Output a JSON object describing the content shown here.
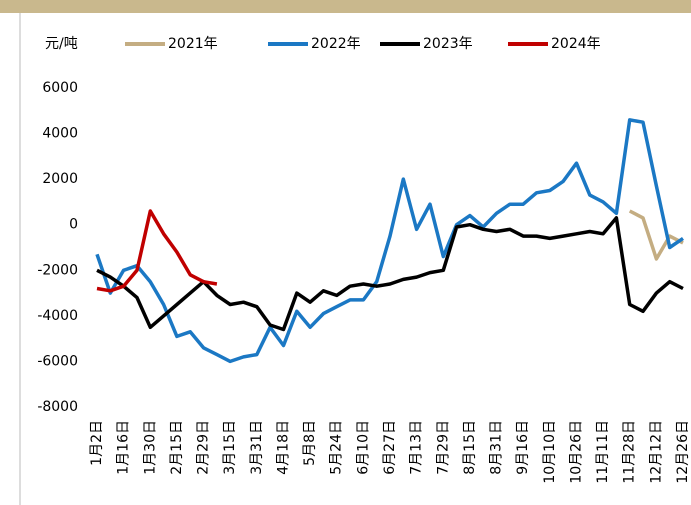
{
  "chart_data": {
    "type": "line",
    "y_unit": "元/吨",
    "categories": [
      "1月2日",
      null,
      "1月16日",
      null,
      "1月30日",
      null,
      "2月15日",
      null,
      "2月29日",
      null,
      "3月15日",
      null,
      "3月31日",
      null,
      "4月18日",
      null,
      "5月8日",
      null,
      "5月24日",
      null,
      "6月10日",
      null,
      "6月27日",
      null,
      "7月13日",
      null,
      "7月29日",
      null,
      "8月15日",
      null,
      "8月31日",
      null,
      "9月16日",
      null,
      "10月10日",
      null,
      "10月26日",
      null,
      "11月11日",
      null,
      "11月28日",
      null,
      "12月12日",
      null,
      "12月26日"
    ],
    "series": [
      {
        "name": "2021年",
        "color": "#c4ad82",
        "values": [
          null,
          null,
          null,
          null,
          null,
          null,
          null,
          null,
          null,
          null,
          null,
          null,
          null,
          null,
          null,
          null,
          null,
          null,
          null,
          null,
          null,
          null,
          null,
          null,
          null,
          null,
          null,
          null,
          null,
          null,
          null,
          null,
          null,
          null,
          null,
          null,
          null,
          null,
          null,
          null,
          600,
          300,
          -1500,
          -500,
          -800
        ]
      },
      {
        "name": "2022年",
        "color": "#1b78c4",
        "values": [
          -1300,
          -3000,
          -2000,
          -1800,
          -2500,
          -3500,
          -4900,
          -4700,
          -5400,
          -5700,
          -6000,
          -5800,
          -5700,
          -4500,
          -5300,
          -3800,
          -4500,
          -3900,
          -3600,
          -3300,
          -3300,
          -2500,
          -500,
          2000,
          -200,
          900,
          -1400,
          0,
          400,
          -100,
          500,
          900,
          900,
          1400,
          1500,
          1900,
          2700,
          1300,
          1000,
          500,
          4600,
          4500,
          1700,
          -1000,
          -600
        ]
      },
      {
        "name": "2023年",
        "color": "#000000",
        "values": [
          -2000,
          -2300,
          -2700,
          -3200,
          -4500,
          -4000,
          -3500,
          -3000,
          -2500,
          -3100,
          -3500,
          -3400,
          -3600,
          -4400,
          -4600,
          -3000,
          -3400,
          -2900,
          -3100,
          -2700,
          -2600,
          -2700,
          -2600,
          -2400,
          -2300,
          -2100,
          -2000,
          -100,
          0,
          -200,
          -300,
          -200,
          -500,
          -500,
          -600,
          -500,
          -400,
          -300,
          -400,
          300,
          -3500,
          -3800,
          -3000,
          -2500,
          -2800
        ]
      },
      {
        "name": "2024年",
        "color": "#c00000",
        "values": [
          -2800,
          -2900,
          -2700,
          -2000,
          600,
          -400,
          -1200,
          -2200,
          -2500,
          -2600,
          null,
          null,
          null,
          null,
          null,
          null,
          null,
          null,
          null,
          null,
          null,
          null,
          null,
          null,
          null,
          null,
          null,
          null,
          null,
          null,
          null,
          null,
          null,
          null,
          null,
          null,
          null,
          null,
          null,
          null,
          null,
          null,
          null,
          null,
          null
        ]
      }
    ],
    "ylim": [
      -8000,
      6000
    ],
    "yticks": [
      -8000,
      -6000,
      -4000,
      -2000,
      0,
      2000,
      4000,
      6000
    ],
    "grid": false
  }
}
